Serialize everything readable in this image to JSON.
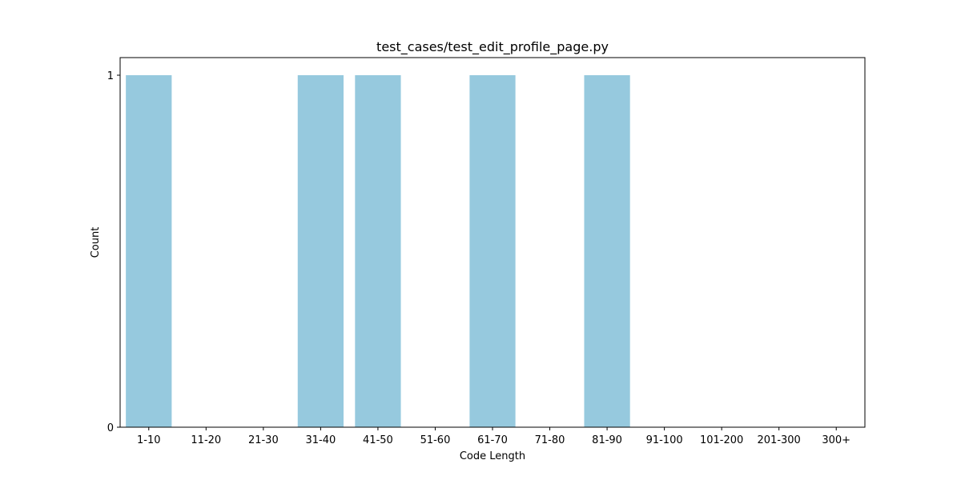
{
  "chart_data": {
    "type": "bar",
    "title": "test_cases/test_edit_profile_page.py",
    "xlabel": "Code Length",
    "ylabel": "Count",
    "categories": [
      "1-10",
      "11-20",
      "21-30",
      "31-40",
      "41-50",
      "51-60",
      "61-70",
      "71-80",
      "81-90",
      "91-100",
      "101-200",
      "201-300",
      "300+"
    ],
    "values": [
      1,
      0,
      0,
      1,
      1,
      0,
      1,
      0,
      1,
      0,
      0,
      0,
      0
    ],
    "ylim": [
      0,
      1.05
    ],
    "yticks": [
      0,
      1
    ],
    "grid": false,
    "legend": "none",
    "bar_color": "#96c9de"
  }
}
